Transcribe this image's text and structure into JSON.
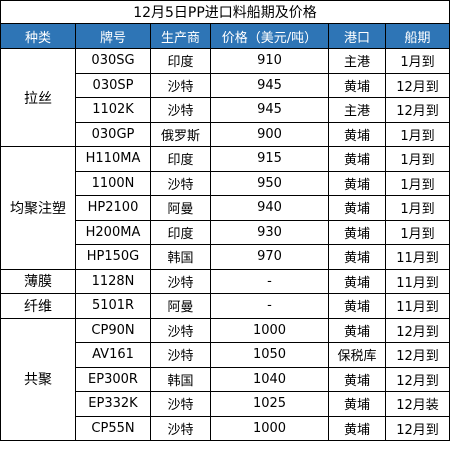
{
  "title": "12月5日PP进口料船期及价格",
  "headers": [
    "种类",
    "牌号",
    "生产商",
    "价格（美元/吨）",
    "港口",
    "船期"
  ],
  "groups": [
    {
      "category": "拉丝",
      "rows": [
        {
          "grade": "030SG",
          "producer": "印度",
          "price": "910",
          "port": "主港",
          "ship": "1月到"
        },
        {
          "grade": "030SP",
          "producer": "沙特",
          "price": "945",
          "port": "黄埔",
          "ship": "12月到"
        },
        {
          "grade": "1102K",
          "producer": "沙特",
          "price": "945",
          "port": "主港",
          "ship": "12月到"
        },
        {
          "grade": "030GP",
          "producer": "俄罗斯",
          "price": "900",
          "port": "黄埔",
          "ship": "1月到"
        }
      ]
    },
    {
      "category": "均聚注塑",
      "rows": [
        {
          "grade": "H110MA",
          "producer": "印度",
          "price": "915",
          "port": "黄埔",
          "ship": "1月到"
        },
        {
          "grade": "1100N",
          "producer": "沙特",
          "price": "950",
          "port": "黄埔",
          "ship": "1月到"
        },
        {
          "grade": "HP2100",
          "producer": "阿曼",
          "price": "940",
          "port": "黄埔",
          "ship": "1月到"
        },
        {
          "grade": "H200MA",
          "producer": "印度",
          "price": "930",
          "port": "黄埔",
          "ship": "1月到"
        },
        {
          "grade": "HP150G",
          "producer": "韩国",
          "price": "970",
          "port": "黄埔",
          "ship": "11月到"
        }
      ]
    },
    {
      "category": "薄膜",
      "rows": [
        {
          "grade": "1128N",
          "producer": "沙特",
          "price": "-",
          "port": "黄埔",
          "ship": "11月到"
        }
      ]
    },
    {
      "category": "纤维",
      "rows": [
        {
          "grade": "5101R",
          "producer": "阿曼",
          "price": "-",
          "port": "黄埔",
          "ship": "11月到"
        }
      ]
    },
    {
      "category": "共聚",
      "rows": [
        {
          "grade": "CP90N",
          "producer": "沙特",
          "price": "1000",
          "port": "黄埔",
          "ship": "12月到"
        },
        {
          "grade": "AV161",
          "producer": "沙特",
          "price": "1050",
          "port": "保税库",
          "ship": "12月到"
        },
        {
          "grade": "EP300R",
          "producer": "韩国",
          "price": "1040",
          "port": "黄埔",
          "ship": "12月到"
        },
        {
          "grade": "EP332K",
          "producer": "沙特",
          "price": "1025",
          "port": "黄埔",
          "ship": "12月装"
        },
        {
          "grade": "CP55N",
          "producer": "沙特",
          "price": "1000",
          "port": "黄埔",
          "ship": "12月到"
        }
      ]
    }
  ]
}
